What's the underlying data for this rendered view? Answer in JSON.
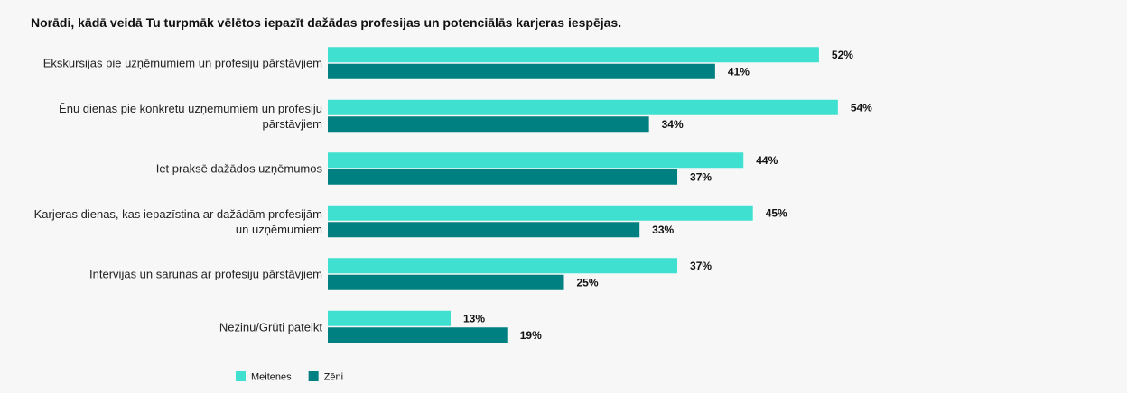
{
  "chart_data": {
    "type": "bar",
    "orientation": "horizontal",
    "title": "Norādi, kādā veidā Tu turpmāk vēlētos iepazīt dažādas profesijas un potenciālās karjeras iespējas.",
    "categories": [
      "Ekskursijas pie uzņēmumiem un profesiju pārstāvjiem",
      "Ēnu dienas pie konkrētu uzņēmumiem un profesiju pārstāvjiem",
      "Iet praksē dažādos uzņēmumos",
      "Karjeras dienas, kas iepazīstina ar dažādām profesijām un uzņēmumiem",
      "Intervijas un sarunas ar profesiju pārstāvjiem",
      "Nezinu/Grūti pateikt"
    ],
    "series": [
      {
        "name": "Meitenes",
        "color": "#40e0d0",
        "values": [
          52,
          54,
          44,
          45,
          37,
          13
        ],
        "value_labels": [
          "52%",
          "54%",
          "44%",
          "45%",
          "37%",
          "13%"
        ]
      },
      {
        "name": "Zēni",
        "color": "#008080",
        "values": [
          41,
          34,
          37,
          33,
          25,
          19
        ],
        "value_labels": [
          "41%",
          "34%",
          "37%",
          "33%",
          "25%",
          "19%"
        ]
      }
    ],
    "xlim": [
      0,
      100
    ]
  }
}
